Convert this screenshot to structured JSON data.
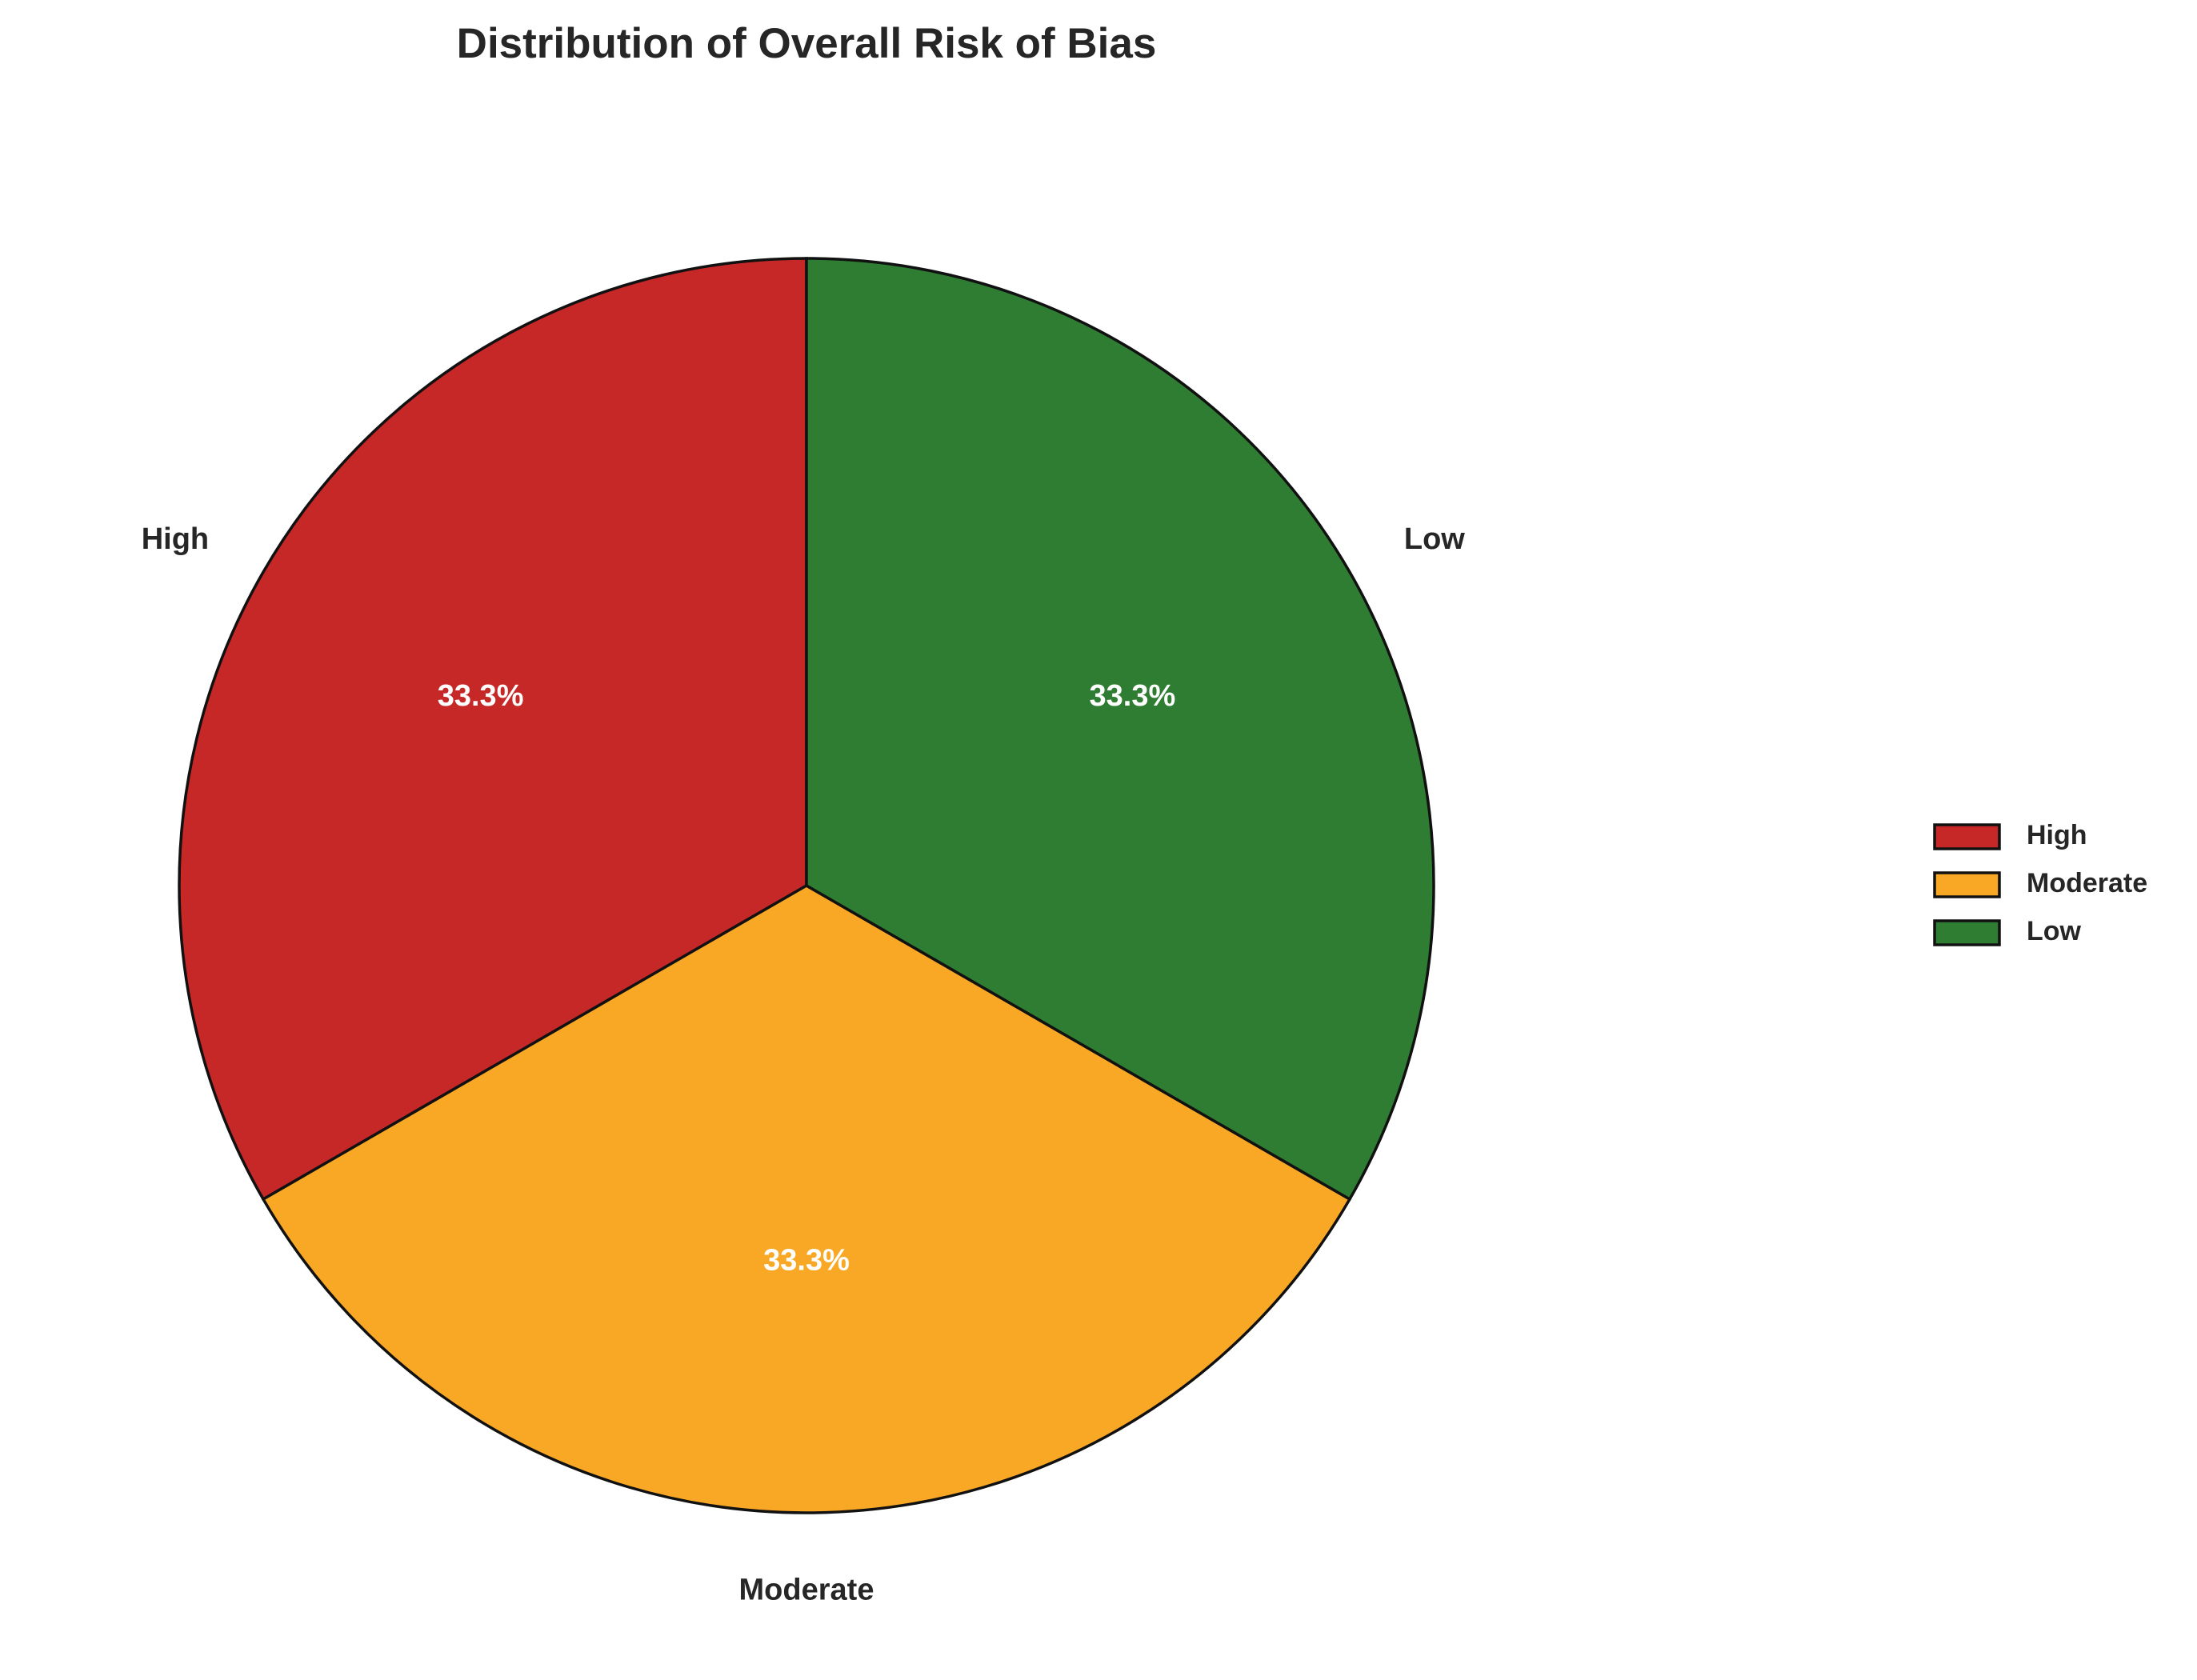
{
  "chart_data": {
    "type": "pie",
    "title": "Distribution of Overall Risk of Bias",
    "categories": [
      "High",
      "Moderate",
      "Low"
    ],
    "values": [
      33.3,
      33.3,
      33.3
    ],
    "value_labels": [
      "33.3%",
      "33.3%",
      "33.3%"
    ],
    "colors": [
      "#c62828",
      "#f9a825",
      "#2e7d32"
    ],
    "legend": "right"
  }
}
